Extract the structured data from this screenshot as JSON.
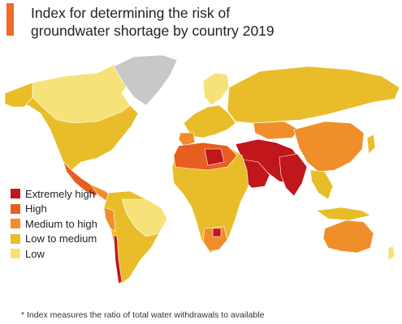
{
  "title": {
    "line1": "Index for determining the risk of",
    "line2": "groundwater shortage by country 2019"
  },
  "colors": {
    "accent": "#ef6a2a",
    "extremely_high": "#c0161c",
    "high": "#e85e1f",
    "medium_to_high": "#f08f2a",
    "low_to_medium": "#e9bd2a",
    "low": "#f7e27a",
    "no_data": "#c8c8c8"
  },
  "legend": {
    "items": [
      {
        "label": "Extremely high",
        "color": "#c0161c"
      },
      {
        "label": "High",
        "color": "#e85e1f"
      },
      {
        "label": "Medium to high",
        "color": "#f08f2a"
      },
      {
        "label": "Low to medium",
        "color": "#e9bd2a"
      },
      {
        "label": "Low",
        "color": "#f7e27a"
      }
    ]
  },
  "footnote": "* Index measures the ratio of total water withdrawals to available"
}
